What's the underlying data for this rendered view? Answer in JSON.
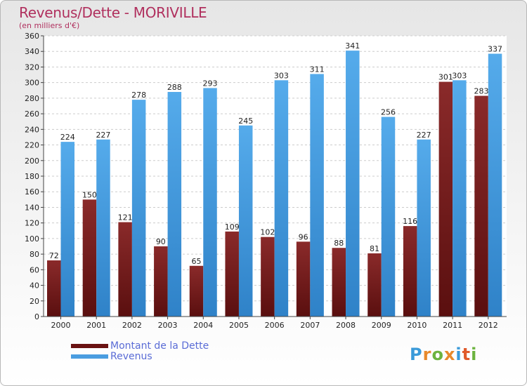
{
  "title": "Revenus/Dette - MORIVILLE",
  "subtitle": "(en milliers d'€)",
  "legend": {
    "dette_label": "Montant de la Dette",
    "revenus_label": "Revenus"
  },
  "colors": {
    "dette": "#7a1a1a",
    "revenus": "#4a9de0",
    "title": "#b0305e",
    "legend_text": "#5a6cd6"
  },
  "logo": {
    "text": "Proxiti",
    "colors": [
      "#3a9ad9",
      "#e8892b",
      "#6cb33f",
      "#e8892b",
      "#3a9ad9",
      "#e05a2b",
      "#6cb33f"
    ]
  },
  "chart_data": {
    "type": "bar",
    "title": "Revenus/Dette - MORIVILLE",
    "ylabel": "(en milliers d'€)",
    "xlabel": "",
    "ylim": [
      0,
      360
    ],
    "ytick_step": 20,
    "grid": true,
    "legend_position": "bottom-left",
    "categories": [
      "2000",
      "2001",
      "2002",
      "2003",
      "2004",
      "2005",
      "2006",
      "2007",
      "2008",
      "2009",
      "2010",
      "2011",
      "2012"
    ],
    "series": [
      {
        "name": "Montant de la Dette",
        "values": [
          72,
          150,
          121,
          90,
          65,
          109,
          102,
          96,
          88,
          81,
          116,
          301,
          283
        ]
      },
      {
        "name": "Revenus",
        "values": [
          224,
          227,
          278,
          288,
          293,
          245,
          303,
          311,
          341,
          256,
          227,
          303,
          337
        ]
      }
    ]
  }
}
